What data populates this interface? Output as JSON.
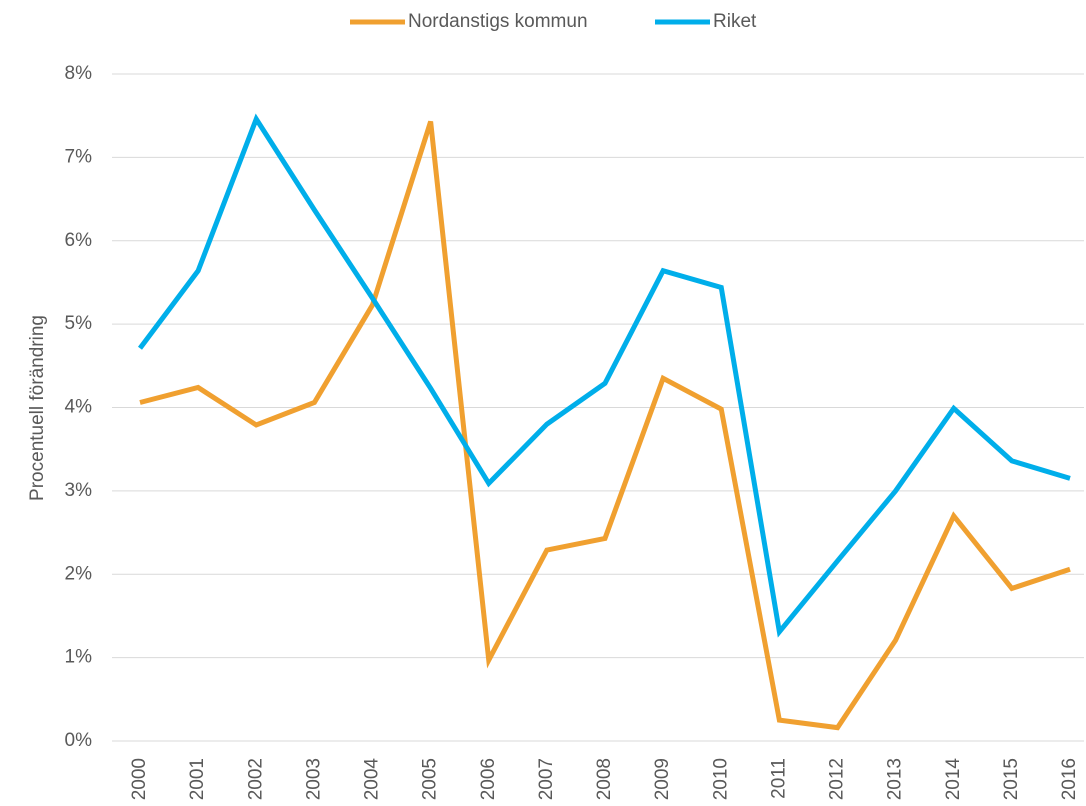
{
  "chart_data": {
    "type": "line",
    "y_label": "Procentuell förändring",
    "categories": [
      "2000",
      "2001",
      "2002",
      "2003",
      "2004",
      "2005",
      "2006",
      "2007",
      "2008",
      "2009",
      "2010",
      "2011",
      "2012",
      "2013",
      "2014",
      "2015",
      "2016"
    ],
    "series": [
      {
        "name": "Nordanstigs kommun",
        "color": "#f0a030",
        "values": [
          4.06,
          4.24,
          3.79,
          4.06,
          5.23,
          7.43,
          0.97,
          2.29,
          2.43,
          4.35,
          3.98,
          0.25,
          0.16,
          1.21,
          2.7,
          1.83,
          2.06
        ]
      },
      {
        "name": "Riket",
        "color": "#00aeea",
        "values": [
          4.71,
          5.64,
          7.46,
          6.37,
          5.31,
          4.23,
          3.09,
          3.8,
          4.29,
          5.64,
          5.44,
          1.31,
          2.16,
          3.0,
          3.99,
          3.36,
          3.15
        ]
      }
    ],
    "ylim": [
      0,
      8
    ],
    "yticks": [
      {
        "value": 0,
        "label": "0%"
      },
      {
        "value": 1,
        "label": "1%"
      },
      {
        "value": 2,
        "label": "2%"
      },
      {
        "value": 3,
        "label": "3%"
      },
      {
        "value": 4,
        "label": "4%"
      },
      {
        "value": 5,
        "label": "5%"
      },
      {
        "value": 6,
        "label": "6%"
      },
      {
        "value": 7,
        "label": "7%"
      },
      {
        "value": 8,
        "label": "8%"
      }
    ],
    "grid": true,
    "legend": "top"
  }
}
